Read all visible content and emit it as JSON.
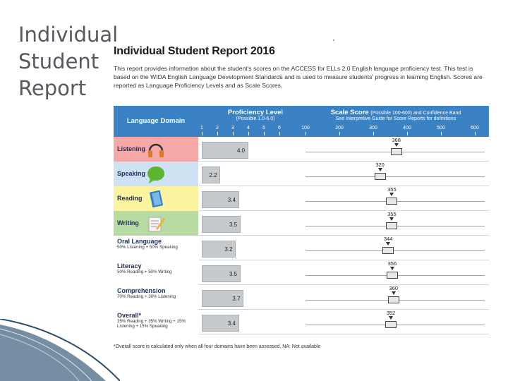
{
  "slide": {
    "title_lines": [
      "Individual",
      "Student",
      "Report"
    ]
  },
  "report": {
    "title": "Individual Student Report 2016",
    "intro": "This report provides information about the student's scores on the ACCESS for ELLs 2.0 English language proficiency test. This test is based on the WIDA English Language Development Standards and is used to measure students' progress in learning English. Scores are reported as Language Proficiency Levels and as Scale Scores."
  },
  "header": {
    "domain": "Language Domain",
    "proficiency_title": "Proficiency Level",
    "proficiency_sub": "(Possible 1.0-6.0)",
    "proficiency_ticks": [
      "1",
      "2",
      "3",
      "4",
      "5",
      "6"
    ],
    "scale_title": "Scale Score",
    "scale_title_rest": "(Possible 100-600) and Confidence Band",
    "scale_sub": "See Interpretive Guide for Score Reports for definitions",
    "scale_ticks": [
      "100",
      "200",
      "300",
      "400",
      "500",
      "600"
    ]
  },
  "rows": [
    {
      "domain": "Listening",
      "sub": "",
      "bg": "#f4a9a8",
      "icon": "headphones-icon",
      "prof": 4.0,
      "prof_label": "4.0",
      "scale": 368,
      "scale_label": "368"
    },
    {
      "domain": "Speaking",
      "sub": "",
      "bg": "#cfe2f3",
      "icon": "speech-bubble-icon",
      "prof": 2.2,
      "prof_label": "2.2",
      "scale": 320,
      "scale_label": "320"
    },
    {
      "domain": "Reading",
      "sub": "",
      "bg": "#fcf3a1",
      "icon": "book-icon",
      "prof": 3.4,
      "prof_label": "3.4",
      "scale": 355,
      "scale_label": "355"
    },
    {
      "domain": "Writing",
      "sub": "",
      "bg": "#b6dca3",
      "icon": "pencil-paper-icon",
      "prof": 3.5,
      "prof_label": "3.5",
      "scale": 355,
      "scale_label": "355"
    },
    {
      "domain": "Oral Language",
      "sub": "50% Listening + 50% Speaking",
      "bg": "#ffffff",
      "icon": "",
      "prof": 3.2,
      "prof_label": "3.2",
      "scale": 344,
      "scale_label": "344"
    },
    {
      "domain": "Literacy",
      "sub": "50% Reading + 50% Writing",
      "bg": "#ffffff",
      "icon": "",
      "prof": 3.5,
      "prof_label": "3.5",
      "scale": 356,
      "scale_label": "356"
    },
    {
      "domain": "Comprehension",
      "sub": "70% Reading + 30% Listening",
      "bg": "#ffffff",
      "icon": "",
      "prof": 3.7,
      "prof_label": "3.7",
      "scale": 360,
      "scale_label": "360"
    },
    {
      "domain": "Overall*",
      "sub": "35% Reading + 35% Writing + 15% Listening + 15% Speaking",
      "bg": "#ffffff",
      "icon": "",
      "prof": 3.4,
      "prof_label": "3.4",
      "scale": 352,
      "scale_label": "352"
    }
  ],
  "footnote": "*Overall score is calculated only when all four domains have been assessed. NA: Not available",
  "colors": {
    "header_blue": "#3b82c4",
    "dark_navy": "#1a2f5a"
  }
}
